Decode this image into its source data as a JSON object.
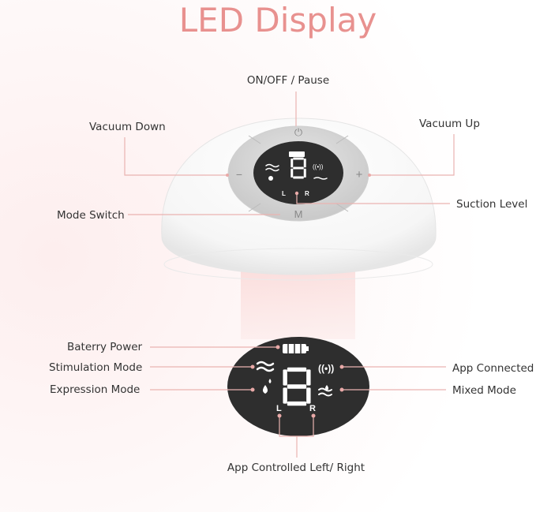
{
  "title": "LED Display",
  "colors": {
    "title": "#e8918f",
    "display": "#2e2e2e",
    "leader_line": "#eab3b1",
    "beam": "#f7c9c6"
  },
  "device_labels": {
    "power": "ON/OFF / Pause",
    "vacuum_down": "Vacuum Down",
    "vacuum_up": "Vacuum Up",
    "suction_level": "Suction Level",
    "mode_switch": "Mode Switch"
  },
  "buttons": {
    "minus": "−",
    "plus": "+",
    "mode": "M"
  },
  "display": {
    "digit": "8",
    "left": "L",
    "right": "R"
  },
  "display_labels": {
    "battery": "Baterry Power",
    "stimulation": "Stimulation Mode",
    "expression": "Expression Mode",
    "app_connected": "App Connected",
    "mixed": "Mixed Mode",
    "left_right": "App Controlled Left/ Right"
  }
}
